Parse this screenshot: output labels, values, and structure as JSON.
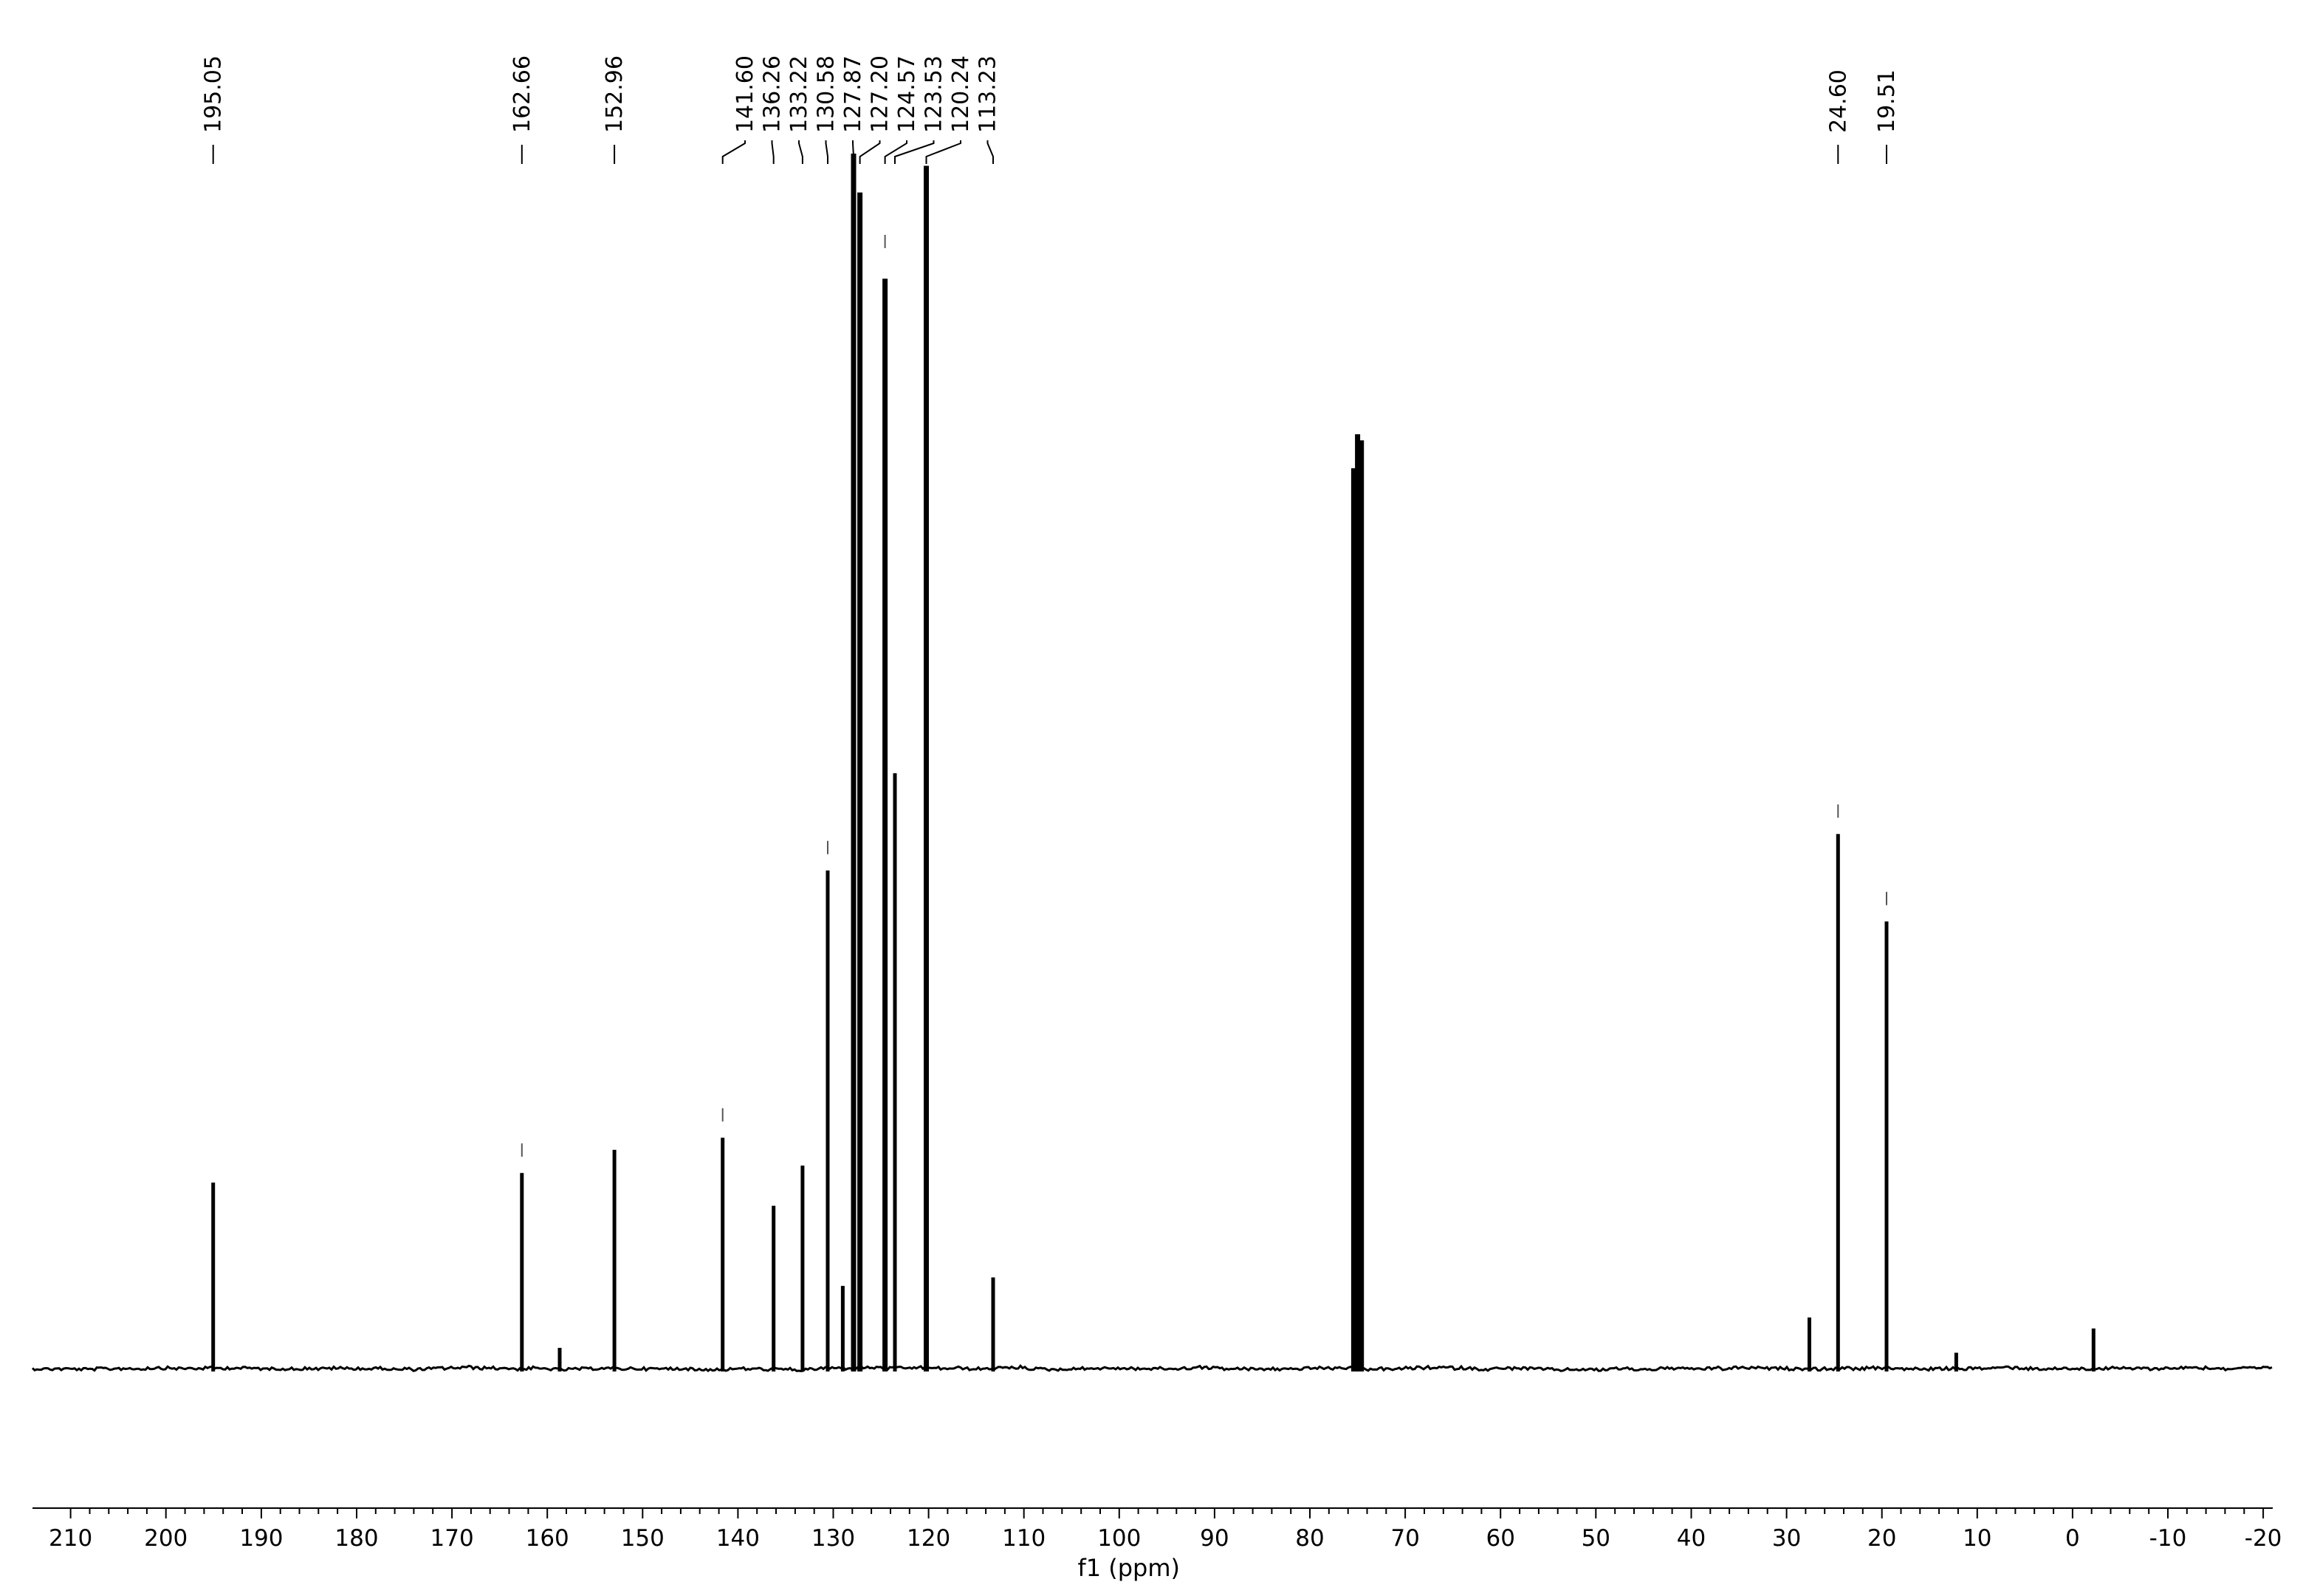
{
  "chart_data": {
    "type": "line",
    "xlabel": "f1 (ppm)",
    "xlim": [
      214,
      -21
    ],
    "x_reversed": true,
    "grid": false,
    "legend": "none",
    "line_color": "#000000",
    "ticks": [
      "210",
      "200",
      "190",
      "180",
      "170",
      "160",
      "150",
      "140",
      "130",
      "120",
      "110",
      "100",
      "90",
      "80",
      "70",
      "60",
      "50",
      "40",
      "30",
      "20",
      "10",
      "0",
      "-10",
      "-20"
    ],
    "labeled_peaks": [
      {
        "ppm": 195.05,
        "label": "195.05",
        "intensity": 0.153
      },
      {
        "ppm": 162.66,
        "label": "162.66",
        "intensity": 0.161
      },
      {
        "ppm": 152.96,
        "label": "152.96",
        "intensity": 0.18
      },
      {
        "ppm": 141.6,
        "label": "141.60",
        "intensity": 0.19
      },
      {
        "ppm": 136.26,
        "label": "136.26",
        "intensity": 0.134
      },
      {
        "ppm": 133.22,
        "label": "133.22",
        "intensity": 0.167
      },
      {
        "ppm": 130.58,
        "label": "130.58",
        "intensity": 0.41
      },
      {
        "ppm": 127.87,
        "label": "127.87",
        "intensity": 1.0
      },
      {
        "ppm": 127.2,
        "label": "127.20",
        "intensity": 0.968
      },
      {
        "ppm": 124.57,
        "label": "124.57",
        "intensity": 0.897
      },
      {
        "ppm": 123.53,
        "label": "123.53",
        "intensity": 0.49
      },
      {
        "ppm": 120.24,
        "label": "120.24",
        "intensity": 0.99
      },
      {
        "ppm": 113.23,
        "label": "113.23",
        "intensity": 0.075
      },
      {
        "ppm": 24.6,
        "label": "24.60",
        "intensity": 0.44
      },
      {
        "ppm": 19.51,
        "label": "19.51",
        "intensity": 0.368
      }
    ],
    "other_peaks": [
      {
        "ppm": 158.7,
        "intensity": 0.017
      },
      {
        "ppm": 129.0,
        "intensity": 0.068
      },
      {
        "ppm": 75.4,
        "intensity": 0.741
      },
      {
        "ppm": 75.0,
        "intensity": 0.769
      },
      {
        "ppm": 74.6,
        "intensity": 0.764
      },
      {
        "ppm": 27.6,
        "intensity": 0.042
      },
      {
        "ppm": 12.2,
        "intensity": 0.013
      },
      {
        "ppm": -2.2,
        "intensity": 0.033
      }
    ]
  }
}
